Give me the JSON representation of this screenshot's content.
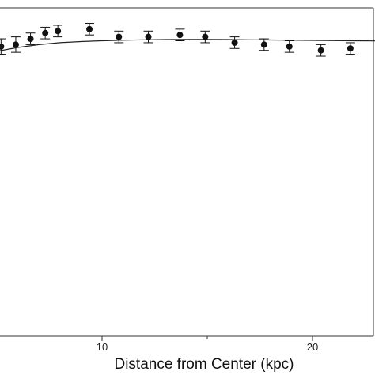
{
  "chart_data": {
    "type": "scatter",
    "title": "",
    "xlabel": "Distance from Center (kpc)",
    "ylabel": "",
    "xlim": [
      5.0,
      23.0
    ],
    "ylim": [
      0,
      1.7
    ],
    "x_ticks": [
      10,
      20
    ],
    "grid": false,
    "series": [
      {
        "kind": "points-with-errorbars",
        "points": [
          {
            "x": 5.2,
            "y": 1.5,
            "err": 0.04
          },
          {
            "x": 5.9,
            "y": 1.51,
            "err": 0.04
          },
          {
            "x": 6.6,
            "y": 1.54,
            "err": 0.03
          },
          {
            "x": 7.3,
            "y": 1.57,
            "err": 0.03
          },
          {
            "x": 7.9,
            "y": 1.58,
            "err": 0.03
          },
          {
            "x": 9.4,
            "y": 1.59,
            "err": 0.03
          },
          {
            "x": 10.8,
            "y": 1.55,
            "err": 0.03
          },
          {
            "x": 12.2,
            "y": 1.55,
            "err": 0.03
          },
          {
            "x": 13.7,
            "y": 1.56,
            "err": 0.03
          },
          {
            "x": 14.9,
            "y": 1.55,
            "err": 0.03
          },
          {
            "x": 16.3,
            "y": 1.52,
            "err": 0.03
          },
          {
            "x": 17.7,
            "y": 1.51,
            "err": 0.03
          },
          {
            "x": 18.9,
            "y": 1.5,
            "err": 0.03
          },
          {
            "x": 20.4,
            "y": 1.48,
            "err": 0.03
          },
          {
            "x": 21.8,
            "y": 1.49,
            "err": 0.03
          }
        ]
      },
      {
        "kind": "line",
        "x": [
          5.0,
          6.0,
          7.0,
          8.0,
          9.0,
          10.0,
          11.0,
          12.0,
          13.0,
          14.0,
          15.0,
          16.0,
          17.0,
          18.0,
          19.0,
          20.0,
          21.0,
          22.0,
          23.0
        ],
        "y": [
          1.475,
          1.495,
          1.51,
          1.52,
          1.526,
          1.53,
          1.533,
          1.535,
          1.536,
          1.537,
          1.537,
          1.536,
          1.535,
          1.534,
          1.533,
          1.532,
          1.531,
          1.53,
          1.529
        ]
      }
    ]
  }
}
